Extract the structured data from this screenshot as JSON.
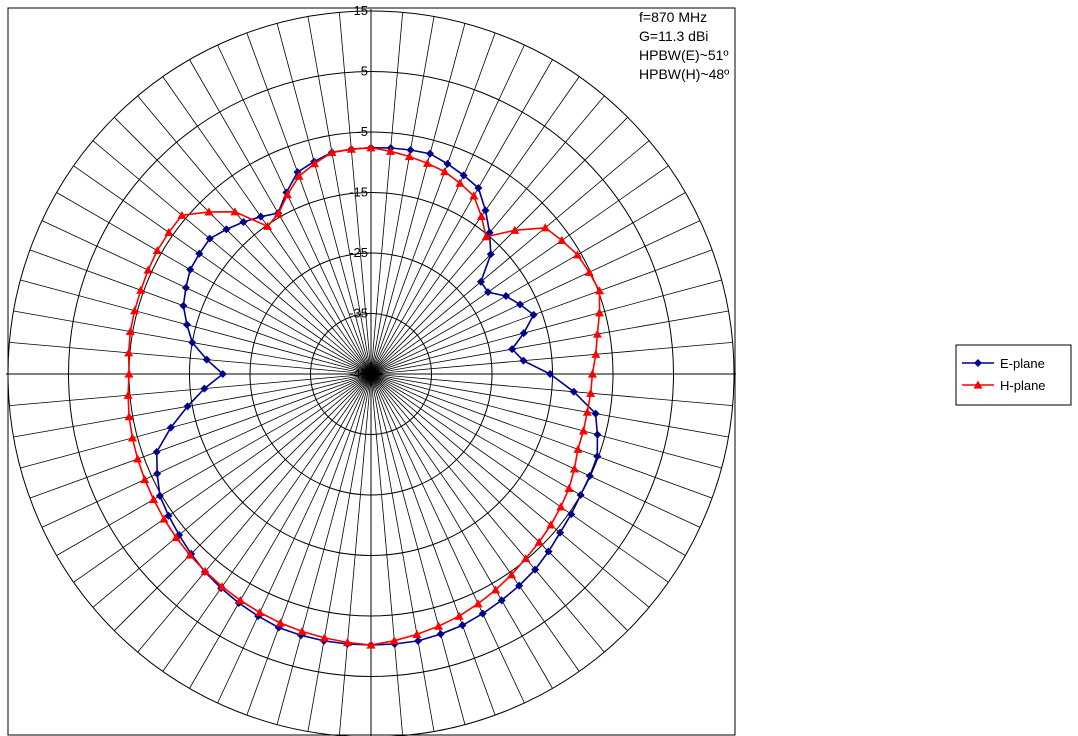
{
  "chart_data": {
    "type": "polar-line",
    "radial_axis": {
      "min": -45,
      "max": 15,
      "tick_labels": [
        "15",
        "5",
        "-5",
        "-15",
        "-25",
        "-35",
        "-45"
      ]
    },
    "angular_step_deg": 5,
    "annotations": [
      "f=870 MHz",
      "G=11.3 dBi",
      "HPBW(E)~51º",
      "HPBW(H)~48º"
    ],
    "legend_position": "right",
    "series": [
      {
        "name": "E-plane",
        "color": "#00008B",
        "marker": "diamond",
        "points": [
          [
            0,
            -7.6
          ],
          [
            15,
            -7.3
          ],
          [
            30,
            -9.5
          ],
          [
            45,
            -17.0
          ],
          [
            52,
            -23.0
          ],
          [
            58,
            -19.8
          ],
          [
            70,
            -16.4
          ],
          [
            82,
            -22.3
          ],
          [
            90,
            -15.4
          ],
          [
            100,
            -7.3
          ],
          [
            110,
            -5.2
          ],
          [
            120,
            -5.0
          ],
          [
            130,
            -4.2
          ],
          [
            140,
            -2.8
          ],
          [
            150,
            -1.8
          ],
          [
            160,
            -0.8
          ],
          [
            170,
            -0.2
          ],
          [
            180,
            -0.2
          ],
          [
            190,
            -0.2
          ],
          [
            200,
            -0.4
          ],
          [
            210,
            -1.3
          ],
          [
            220,
            -2.3
          ],
          [
            230,
            -3.6
          ],
          [
            240,
            -4.7
          ],
          [
            250,
            -7.3
          ],
          [
            260,
            -14.2
          ],
          [
            270,
            -20.5
          ],
          [
            280,
            -15.0
          ],
          [
            290,
            -12.0
          ],
          [
            300,
            -10.5
          ],
          [
            310,
            -10.2
          ],
          [
            320,
            -12.2
          ],
          [
            330,
            -14.3
          ],
          [
            340,
            -9.5
          ],
          [
            350,
            -7.8
          ]
        ]
      },
      {
        "name": "H-plane",
        "color": "#FF0000",
        "marker": "triangle",
        "points": [
          [
            0,
            -7.6
          ],
          [
            20,
            -9.4
          ],
          [
            30,
            -11.0
          ],
          [
            40,
            -15.4
          ],
          [
            50,
            -7.4
          ],
          [
            60,
            -5.6
          ],
          [
            70,
            -4.8
          ],
          [
            80,
            -7.0
          ],
          [
            90,
            -8.4
          ],
          [
            100,
            -8.7
          ],
          [
            110,
            -8.6
          ],
          [
            120,
            -7.2
          ],
          [
            140,
            -5.2
          ],
          [
            160,
            -2.4
          ],
          [
            180,
            -0.2
          ],
          [
            200,
            -1.2
          ],
          [
            220,
            -2.4
          ],
          [
            240,
            -3.5
          ],
          [
            260,
            -4.4
          ],
          [
            270,
            -5.0
          ],
          [
            280,
            -4.6
          ],
          [
            290,
            -4.5
          ],
          [
            300,
            -4.2
          ],
          [
            310,
            -4.2
          ],
          [
            320,
            -10.0
          ],
          [
            325,
            -15.2
          ],
          [
            330,
            -14.4
          ],
          [
            340,
            -10.2
          ],
          [
            350,
            -7.8
          ]
        ]
      }
    ]
  }
}
